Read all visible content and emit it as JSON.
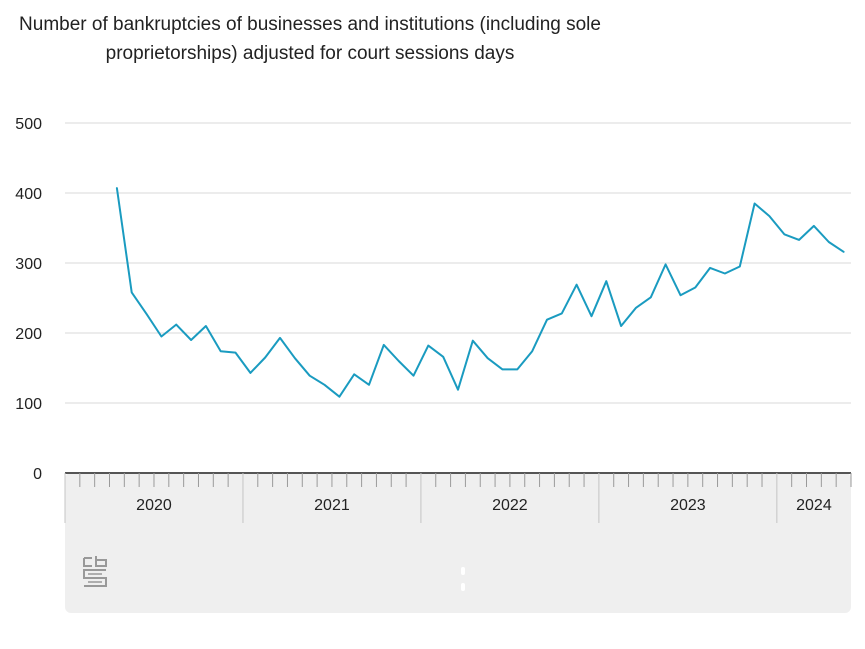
{
  "chart_data": {
    "type": "line",
    "title": "Number of bankruptcies of businesses and institutions (including sole proprietorships) adjusted for court sessions days",
    "xlabel": "",
    "ylabel": "",
    "ylim": [
      0,
      500
    ],
    "yticks": [
      0,
      100,
      200,
      300,
      400,
      500
    ],
    "grid": true,
    "legend": "none",
    "x": [
      "2020-04",
      "2020-05",
      "2020-06",
      "2020-07",
      "2020-08",
      "2020-09",
      "2020-10",
      "2020-11",
      "2020-12",
      "2021-01",
      "2021-02",
      "2021-03",
      "2021-04",
      "2021-05",
      "2021-06",
      "2021-07",
      "2021-08",
      "2021-09",
      "2021-10",
      "2021-11",
      "2021-12",
      "2022-01",
      "2022-02",
      "2022-03",
      "2022-04",
      "2022-05",
      "2022-06",
      "2022-07",
      "2022-08",
      "2022-09",
      "2022-10",
      "2022-11",
      "2022-12",
      "2023-01",
      "2023-02",
      "2023-03",
      "2023-04",
      "2023-05",
      "2023-06",
      "2023-07",
      "2023-08",
      "2023-09",
      "2023-10",
      "2023-11",
      "2023-12",
      "2024-01",
      "2024-02",
      "2024-03",
      "2024-04",
      "2024-05"
    ],
    "series": [
      {
        "name": "",
        "color": "#1a9bc0",
        "values": [
          407,
          258,
          227,
          195,
          212,
          190,
          210,
          174,
          172,
          143,
          165,
          193,
          164,
          139,
          126,
          109,
          141,
          126,
          183,
          160,
          139,
          182,
          166,
          119,
          189,
          164,
          148,
          148,
          174,
          219,
          228,
          269,
          224,
          274,
          210,
          236,
          251,
          298,
          254,
          265,
          293,
          285,
          295,
          385,
          367,
          341,
          333,
          353,
          330,
          316
        ]
      }
    ],
    "year_labels": [
      "2020",
      "2021",
      "2022",
      "2023",
      "2024"
    ]
  },
  "colors": {
    "line": "#1a9bc0",
    "grid": "#d9d9d9",
    "axis": "#555555",
    "band": "#efefef"
  },
  "logo_text": "cbs"
}
